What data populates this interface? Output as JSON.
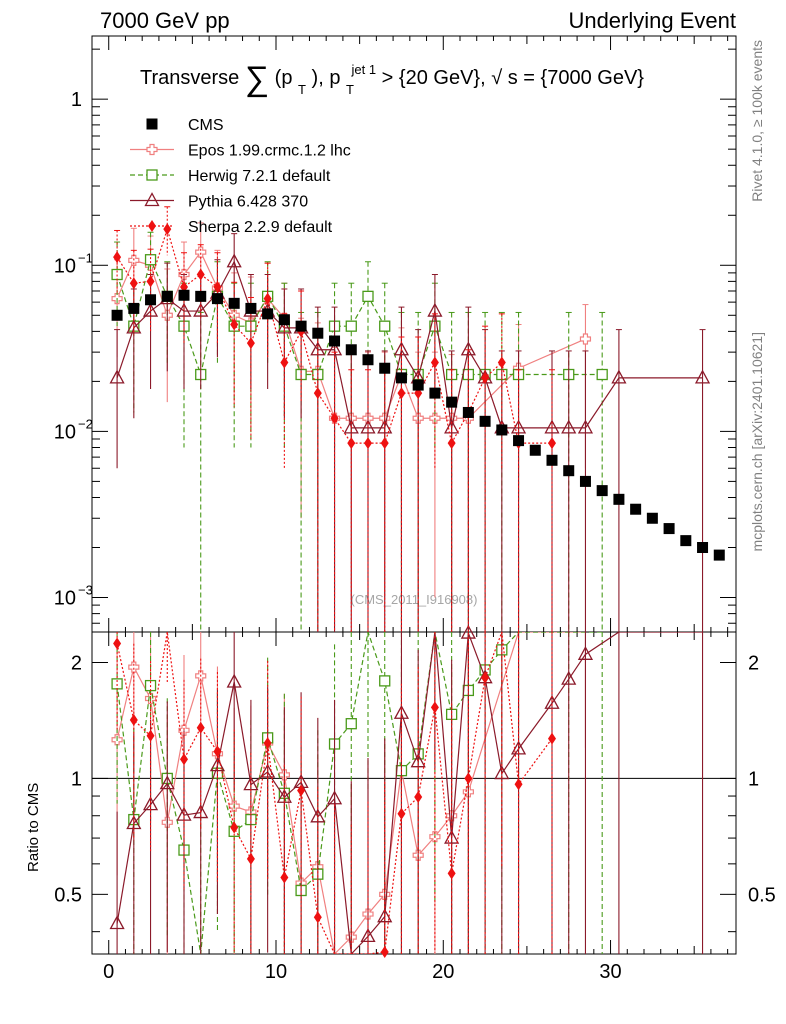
{
  "header": {
    "left": "7000 GeV pp",
    "right": "Underlying Event",
    "side_rivet": "Rivet 4.1.0, ≥ 100k events",
    "side_site": "mcplots.cern.ch [arXiv:2401.10621]",
    "watermark": "(CMS_2011_I916908)"
  },
  "chart_data": {
    "type": "scatter",
    "title": "Transverse ∑(pT), pT jet 1 > {20 GeV}, √s = {7000 GeV}",
    "title_parts": {
      "lead": "Transverse",
      "sum": "∑",
      "p1": "(p",
      "sub_T": "T",
      "p2": "), p",
      "sup_jet": "jet 1",
      "p3": " > {20 GeV}, ",
      "sqrt": "√",
      "p4": "s = {7000 GeV}"
    },
    "xlim": [
      -1,
      37.5
    ],
    "ylim_main": [
      0.00062,
      2.4
    ],
    "yscale_main": "log",
    "ylim_ratio": [
      0.35,
      2.4
    ],
    "yscale_ratio": "log",
    "xlabel": "",
    "ylabel_ratio": "Ratio to CMS",
    "x_ticks": [
      {
        "value": 0,
        "label": "0"
      },
      {
        "value": 10,
        "label": "10"
      },
      {
        "value": 20,
        "label": "20"
      },
      {
        "value": 30,
        "label": "30"
      }
    ],
    "y_ticks_main": [
      {
        "value": 1,
        "label": "1"
      },
      {
        "value": 0.1,
        "label": "10",
        "exp": "−1"
      },
      {
        "value": 0.01,
        "label": "10",
        "exp": "−2"
      },
      {
        "value": 0.001,
        "label": "10",
        "exp": "−3"
      }
    ],
    "y_ticks_ratio": [
      {
        "value": 0.5,
        "label": "0.5"
      },
      {
        "value": 1,
        "label": "1"
      },
      {
        "value": 2,
        "label": "2"
      }
    ],
    "series": [
      {
        "name": "CMS",
        "color": "#000000",
        "marker": "square-filled",
        "x": [
          0.5,
          1.5,
          2.5,
          3.5,
          4.5,
          5.5,
          6.5,
          7.5,
          8.5,
          9.5,
          10.5,
          11.5,
          12.5,
          13.5,
          14.5,
          15.5,
          16.5,
          17.5,
          18.5,
          19.5,
          20.5,
          21.5,
          22.5,
          23.5,
          24.5,
          25.5,
          26.5,
          27.5,
          28.5,
          29.5,
          30.5,
          31.5,
          32.5,
          33.5,
          34.5,
          35.5,
          36.5
        ],
        "y": [
          0.05,
          0.055,
          0.062,
          0.065,
          0.066,
          0.065,
          0.063,
          0.059,
          0.055,
          0.051,
          0.047,
          0.043,
          0.039,
          0.035,
          0.031,
          0.027,
          0.024,
          0.021,
          0.019,
          0.017,
          0.015,
          0.013,
          0.0115,
          0.0102,
          0.0088,
          0.0077,
          0.0067,
          0.0058,
          0.005,
          0.0044,
          0.0039,
          0.0034,
          0.003,
          0.0026,
          0.0022,
          0.002,
          0.0018
        ]
      },
      {
        "name": "Epos 1.99.crmc.1.2 lhc",
        "color": "#f08080",
        "marker": "cross-open",
        "line": "solid",
        "x": [
          0.5,
          1.5,
          2.5,
          3.5,
          4.5,
          5.5,
          6.5,
          7.5,
          8.5,
          9.5,
          10.5,
          11.5,
          12.5,
          13.5,
          14.5,
          15.5,
          16.5,
          17.5,
          18.5,
          19.5,
          20.5,
          21.5,
          24.5,
          28.5
        ],
        "y": [
          0.063,
          0.107,
          0.1,
          0.05,
          0.088,
          0.12,
          0.073,
          0.05,
          0.045,
          0.063,
          0.048,
          0.023,
          0.023,
          0.012,
          0.012,
          0.012,
          0.012,
          0.022,
          0.012,
          0.012,
          0.012,
          0.012,
          0.024,
          0.036
        ],
        "err_up": [
          0.045,
          0.06,
          0.05,
          0.045,
          0.05,
          0.06,
          0.05,
          0.04,
          0.04,
          0.04,
          0.03,
          0.025,
          0.022,
          0.02,
          0.018,
          0.018,
          0.018,
          0.02,
          0.018,
          0.018,
          0.017,
          0.017,
          0.02,
          0.022
        ],
        "err_lo": [
          0.035,
          0.05,
          0.045,
          0.035,
          0.045,
          0.05,
          0.045,
          0.035,
          0.035,
          0.035,
          0.03,
          0.02,
          0.02,
          0.011,
          0.011,
          0.011,
          0.011,
          0.02,
          0.011,
          0.011,
          0.011,
          0.011,
          0.02,
          0.03
        ]
      },
      {
        "name": "Herwig 7.2.1 default",
        "color": "#4a9a1a",
        "marker": "square-open",
        "line": "dashed",
        "x": [
          0.5,
          1.5,
          2.5,
          3.5,
          4.5,
          5.5,
          6.5,
          7.5,
          8.5,
          9.5,
          10.5,
          11.5,
          12.5,
          13.5,
          14.5,
          15.5,
          16.5,
          17.5,
          18.5,
          19.5,
          20.5,
          21.5,
          22.5,
          23.5,
          24.5,
          27.5,
          29.5
        ],
        "y": [
          0.088,
          0.043,
          0.108,
          0.065,
          0.043,
          0.022,
          0.065,
          0.043,
          0.043,
          0.065,
          0.043,
          0.022,
          0.022,
          0.043,
          0.043,
          0.065,
          0.043,
          0.022,
          0.022,
          0.043,
          0.022,
          0.022,
          0.022,
          0.022,
          0.022,
          0.022,
          0.022
        ],
        "err_up": [
          0.05,
          0.035,
          0.05,
          0.04,
          0.035,
          0.03,
          0.04,
          0.035,
          0.035,
          0.04,
          0.035,
          0.03,
          0.03,
          0.035,
          0.035,
          0.04,
          0.035,
          0.03,
          0.03,
          0.035,
          0.03,
          0.03,
          0.03,
          0.03,
          0.03,
          0.03,
          0.03
        ],
        "err_lo": [
          0.045,
          0.03,
          0.06,
          0.04,
          0.035,
          0.0215,
          0.04,
          0.035,
          0.035,
          0.04,
          0.035,
          0.0215,
          0.0215,
          0.035,
          0.035,
          0.04,
          0.035,
          0.0215,
          0.0215,
          0.035,
          0.0215,
          0.0215,
          0.0215,
          0.0215,
          0.0215,
          0.0215,
          0.0215
        ]
      },
      {
        "name": "Pythia 6.428 370",
        "color": "#8b1a2a",
        "marker": "triangle-open",
        "line": "solid",
        "x": [
          0.5,
          1.5,
          2.5,
          3.5,
          4.5,
          5.5,
          6.5,
          7.5,
          8.5,
          9.5,
          10.5,
          11.5,
          12.5,
          13.5,
          14.5,
          15.5,
          16.5,
          17.5,
          18.5,
          19.5,
          20.5,
          21.5,
          22.5,
          23.5,
          24.5,
          26.5,
          27.5,
          28.5,
          30.5,
          35.5
        ],
        "y": [
          0.021,
          0.042,
          0.053,
          0.063,
          0.053,
          0.053,
          0.068,
          0.105,
          0.053,
          0.053,
          0.042,
          0.042,
          0.031,
          0.031,
          0.0105,
          0.0105,
          0.0105,
          0.031,
          0.021,
          0.053,
          0.0105,
          0.031,
          0.021,
          0.0105,
          0.0105,
          0.0105,
          0.0105,
          0.0105,
          0.021,
          0.021
        ],
        "err_up": [
          0.02,
          0.03,
          0.035,
          0.04,
          0.035,
          0.035,
          0.04,
          0.05,
          0.035,
          0.035,
          0.03,
          0.03,
          0.025,
          0.025,
          0.02,
          0.02,
          0.02,
          0.025,
          0.02,
          0.035,
          0.02,
          0.025,
          0.02,
          0.02,
          0.02,
          0.02,
          0.02,
          0.02,
          0.02,
          0.02
        ],
        "err_lo": [
          0.015,
          0.03,
          0.035,
          0.04,
          0.035,
          0.035,
          0.04,
          0.05,
          0.035,
          0.035,
          0.03,
          0.03,
          0.031,
          0.031,
          0.0105,
          0.0105,
          0.0105,
          0.031,
          0.021,
          0.035,
          0.0105,
          0.031,
          0.021,
          0.0105,
          0.0105,
          0.0105,
          0.0105,
          0.0105,
          0.021,
          0.021
        ]
      },
      {
        "name": "Sherpa 2.2.9 default",
        "color": "#ee1111",
        "marker": "diamond-filled",
        "line": "dotted",
        "x": [
          0.5,
          1.5,
          2.5,
          3.5,
          4.5,
          5.5,
          6.5,
          7.5,
          8.5,
          9.5,
          10.5,
          11.5,
          12.5,
          13.5,
          14.5,
          15.5,
          16.5,
          17.5,
          18.5,
          19.5,
          20.5,
          21.5,
          22.5,
          23.5,
          24.5,
          26.5
        ],
        "y": [
          0.112,
          0.078,
          0.08,
          0.165,
          0.074,
          0.088,
          0.074,
          0.044,
          0.034,
          0.063,
          0.026,
          0.04,
          0.017,
          0.012,
          0.0085,
          0.0085,
          0.0085,
          0.017,
          0.017,
          0.026,
          0.0085,
          0.013,
          0.021,
          0.026,
          0.0085,
          0.0085
        ],
        "err_up": [
          0.05,
          0.045,
          0.045,
          0.06,
          0.045,
          0.045,
          0.045,
          0.035,
          0.03,
          0.04,
          0.025,
          0.03,
          0.02,
          0.018,
          0.015,
          0.015,
          0.015,
          0.02,
          0.02,
          0.025,
          0.015,
          0.018,
          0.022,
          0.025,
          0.015,
          0.015
        ],
        "err_lo": [
          0.045,
          0.04,
          0.04,
          0.05,
          0.04,
          0.04,
          0.04,
          0.03,
          0.025,
          0.035,
          0.02,
          0.025,
          0.017,
          0.012,
          0.0085,
          0.0085,
          0.0085,
          0.017,
          0.017,
          0.02,
          0.0085,
          0.013,
          0.021,
          0.02,
          0.0085,
          0.0085
        ]
      }
    ]
  }
}
